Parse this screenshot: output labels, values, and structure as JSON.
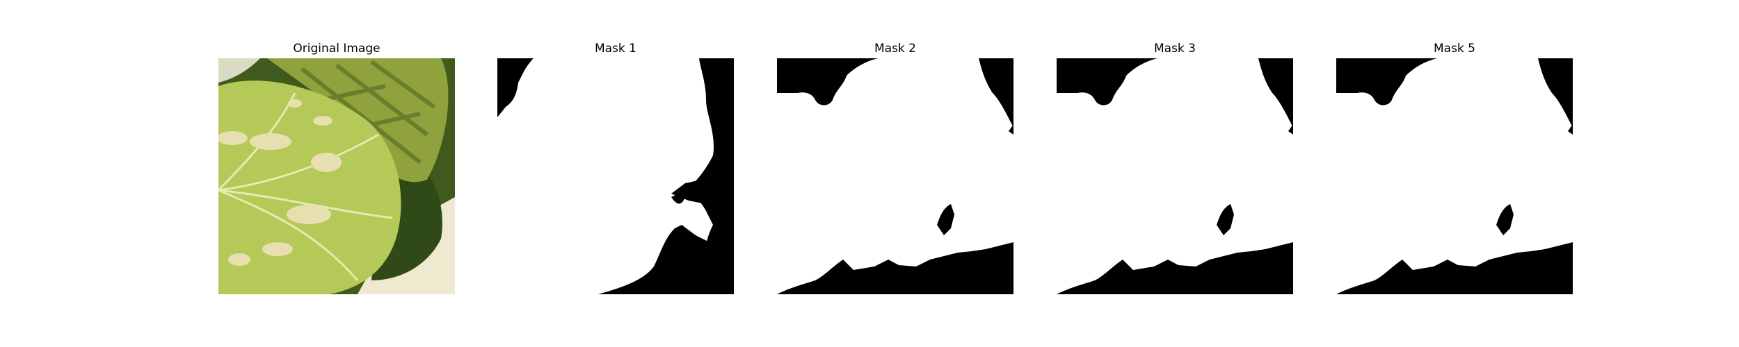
{
  "panels": [
    {
      "title": "Original Image",
      "kind": "photo",
      "subject": "leaf-photo"
    },
    {
      "title": "Mask 1",
      "kind": "binary-mask"
    },
    {
      "title": "Mask 2",
      "kind": "binary-mask"
    },
    {
      "title": "Mask 3",
      "kind": "binary-mask"
    },
    {
      "title": "Mask 5",
      "kind": "binary-mask"
    }
  ],
  "colors": {
    "mask_foreground": "#ffffff",
    "mask_background": "#000000",
    "leaf_light": "#c4d66a",
    "leaf_mid": "#a9bf4a",
    "leaf_dark": "#6f8a2c",
    "leaf_shadow": "#3f5a1c",
    "lesion": "#e8dfb0",
    "backdrop": "#efe9cf"
  }
}
